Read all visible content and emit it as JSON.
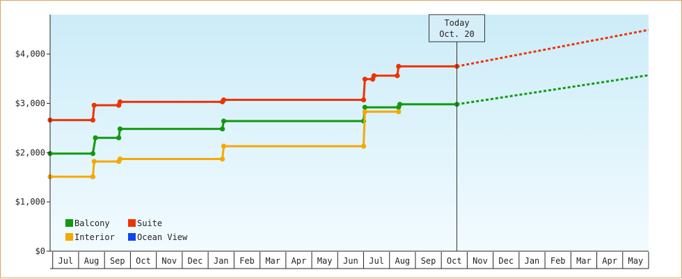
{
  "chart_data": {
    "type": "line",
    "y_ticks": [
      {
        "value": 0,
        "label": "$0"
      },
      {
        "value": 1000,
        "label": "$1,000"
      },
      {
        "value": 2000,
        "label": "$2,000"
      },
      {
        "value": 3000,
        "label": "$3,000"
      },
      {
        "value": 4000,
        "label": "$4,000"
      }
    ],
    "ylim": [
      0,
      4800
    ],
    "month_labels": [
      "Jul",
      "Aug",
      "Sep",
      "Oct",
      "Nov",
      "Dec",
      "Jan",
      "Feb",
      "Mar",
      "Apr",
      "May",
      "Jun",
      "Jul",
      "Aug",
      "Sep",
      "Oct",
      "Nov",
      "Dec",
      "Jan",
      "Feb",
      "Mar",
      "Apr",
      "May"
    ],
    "x_range_months": [
      -0.1,
      23.0
    ],
    "grid": false,
    "legend_position": "bottom-left",
    "annotation": {
      "line1": "Today",
      "line2": "Oct. 20",
      "x": 15.6
    },
    "series": [
      {
        "name": "Balcony",
        "color": "#119911",
        "points": [
          [
            -0.1,
            1980
          ],
          [
            1.55,
            1980
          ],
          [
            1.65,
            2300
          ],
          [
            2.55,
            2300
          ],
          [
            2.6,
            2480
          ],
          [
            6.55,
            2480
          ],
          [
            6.6,
            2640
          ],
          [
            12.0,
            2640
          ],
          [
            12.05,
            2920
          ],
          [
            13.35,
            2920
          ],
          [
            13.4,
            2980
          ],
          [
            15.6,
            2980
          ]
        ],
        "forecast": [
          [
            15.6,
            2980
          ],
          [
            23.0,
            3570
          ]
        ]
      },
      {
        "name": "Suite",
        "color": "#ee3300",
        "points": [
          [
            -0.1,
            2660
          ],
          [
            1.55,
            2660
          ],
          [
            1.6,
            2960
          ],
          [
            2.55,
            2960
          ],
          [
            2.6,
            3030
          ],
          [
            6.55,
            3030
          ],
          [
            6.6,
            3070
          ],
          [
            12.0,
            3070
          ],
          [
            12.05,
            3490
          ],
          [
            12.35,
            3490
          ],
          [
            12.4,
            3560
          ],
          [
            13.3,
            3560
          ],
          [
            13.35,
            3750
          ],
          [
            15.6,
            3750
          ]
        ],
        "forecast": [
          [
            15.6,
            3750
          ],
          [
            23.0,
            4490
          ]
        ]
      },
      {
        "name": "Interior",
        "color": "#f5a800",
        "points": [
          [
            -0.1,
            1510
          ],
          [
            1.55,
            1510
          ],
          [
            1.6,
            1820
          ],
          [
            2.55,
            1820
          ],
          [
            2.6,
            1870
          ],
          [
            6.55,
            1870
          ],
          [
            6.6,
            2130
          ],
          [
            12.0,
            2130
          ],
          [
            12.05,
            2830
          ],
          [
            13.35,
            2830
          ]
        ],
        "forecast": []
      },
      {
        "name": "Ocean View",
        "color": "#1144ee",
        "points": [],
        "forecast": []
      }
    ]
  }
}
